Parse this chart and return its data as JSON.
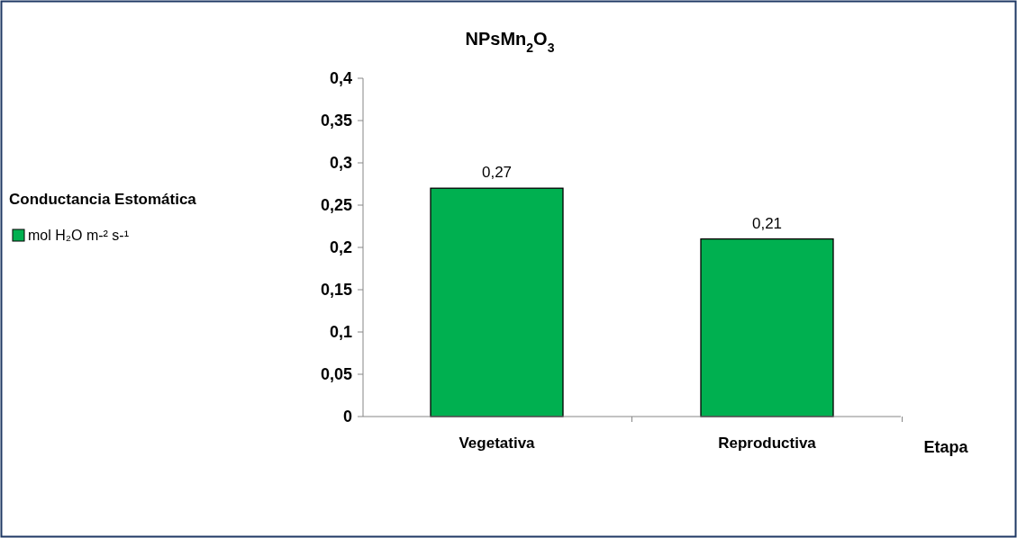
{
  "chart_data": {
    "type": "bar",
    "title": "NPsMn$_{2}$O$_{3}$",
    "legend_title": "Conductancia Estomática",
    "xlabel": "Etapa",
    "categories": [
      "Vegetativa",
      "Reproductiva"
    ],
    "series": [
      {
        "name": "mol H₂O m-² s-¹",
        "color": "#00b050",
        "values": [
          0.27,
          0.21
        ],
        "value_labels": [
          "0,27",
          "0,21"
        ]
      }
    ],
    "ylim": [
      0,
      0.4
    ],
    "yticks": [
      0,
      {
        "value": 0.05,
        "label": "0,05"
      },
      {
        "value": 0.1,
        "label": "0,1"
      },
      {
        "value": 0.15,
        "label": "0,15"
      },
      {
        "value": 0.2,
        "label": "0,2"
      },
      {
        "value": 0.25,
        "label": "0,25"
      },
      {
        "value": 0.3,
        "label": "0,3"
      },
      {
        "value": 0.35,
        "label": "0,35"
      },
      {
        "value": 0.4,
        "label": "0,4"
      }
    ],
    "legend": "left",
    "grid": false
  }
}
